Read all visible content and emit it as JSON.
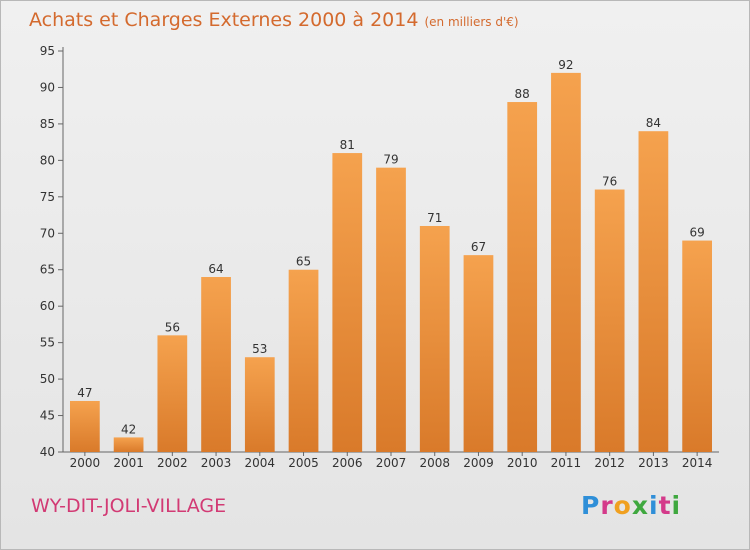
{
  "header": {
    "title": "Achats et Charges Externes 2000 à 2014",
    "subtitle": "(en milliers d'€)"
  },
  "footer": {
    "commune": "WY-DIT-JOLI-VILLAGE",
    "logo": "Proxiti"
  },
  "colors": {
    "title": "#d46a2e",
    "commune": "#d23a74",
    "bar_top": "#f5a24e",
    "bar_bottom": "#d97a2a"
  },
  "chart_data": {
    "type": "bar",
    "title": "Achats et Charges Externes 2000 à 2014",
    "categories": [
      "2000",
      "2001",
      "2002",
      "2003",
      "2004",
      "2005",
      "2006",
      "2007",
      "2008",
      "2009",
      "2010",
      "2011",
      "2012",
      "2013",
      "2014"
    ],
    "values": [
      47,
      42,
      56,
      64,
      53,
      65,
      81,
      79,
      71,
      67,
      88,
      92,
      76,
      84,
      69
    ],
    "ylim": [
      40,
      95
    ],
    "yticks": [
      40,
      45,
      50,
      55,
      60,
      65,
      70,
      75,
      80,
      85,
      90,
      95
    ],
    "grid": false,
    "data_labels": true
  }
}
